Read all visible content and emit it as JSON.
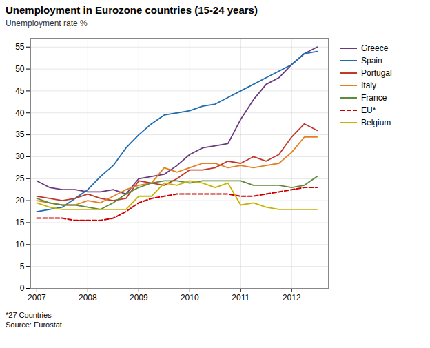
{
  "chart_data": {
    "type": "line",
    "title": "Unemployment in Eurozone countries (15-24 years)",
    "subtitle": "Unemployment rate %",
    "annotations": [
      "*27 Countries",
      "Source: Eurostat"
    ],
    "x": [
      2007.0,
      2007.25,
      2007.5,
      2007.75,
      2008.0,
      2008.25,
      2008.5,
      2008.75,
      2009.0,
      2009.25,
      2009.5,
      2009.75,
      2010.0,
      2010.25,
      2010.5,
      2010.75,
      2011.0,
      2011.25,
      2011.5,
      2011.75,
      2012.0,
      2012.25,
      2012.5
    ],
    "series": [
      {
        "name": "Greece",
        "color": "#6B3A7D",
        "line_style": "solid",
        "values": [
          24.5,
          23.0,
          22.5,
          22.5,
          22.0,
          22.0,
          22.5,
          21.5,
          25.0,
          25.5,
          26.0,
          28.0,
          30.5,
          32.0,
          32.5,
          33.0,
          38.5,
          43.0,
          46.5,
          48.0,
          51.0,
          53.5,
          55.0
        ]
      },
      {
        "name": "Spain",
        "color": "#1F6CB0",
        "line_style": "solid",
        "values": [
          17.5,
          18.0,
          18.5,
          20.5,
          22.5,
          25.5,
          28.0,
          32.0,
          35.0,
          37.5,
          39.5,
          40.0,
          40.5,
          41.5,
          42.0,
          43.5,
          45.0,
          46.5,
          48.0,
          49.5,
          51.0,
          53.5,
          54.0
        ]
      },
      {
        "name": "Portugal",
        "color": "#C0392B",
        "line_style": "solid",
        "values": [
          21.0,
          20.5,
          20.0,
          20.5,
          21.5,
          20.5,
          20.0,
          20.5,
          24.5,
          24.0,
          23.5,
          25.0,
          27.0,
          27.0,
          27.5,
          29.0,
          28.5,
          30.0,
          29.0,
          30.5,
          34.5,
          37.5,
          36.0
        ]
      },
      {
        "name": "Italy",
        "color": "#E67E22",
        "line_style": "solid",
        "values": [
          20.0,
          19.5,
          19.0,
          19.0,
          20.0,
          19.5,
          21.0,
          22.5,
          23.5,
          24.0,
          27.5,
          26.5,
          27.5,
          28.5,
          28.5,
          27.5,
          28.0,
          27.5,
          28.0,
          28.5,
          31.0,
          34.5,
          34.5
        ]
      },
      {
        "name": "France",
        "color": "#5D8A3C",
        "line_style": "solid",
        "values": [
          20.5,
          19.5,
          19.0,
          19.0,
          18.5,
          18.0,
          19.5,
          21.5,
          23.0,
          24.0,
          24.5,
          24.5,
          24.0,
          24.5,
          24.5,
          24.5,
          24.5,
          23.5,
          23.5,
          23.5,
          23.0,
          23.5,
          25.5
        ]
      },
      {
        "name": "EU*",
        "color": "#CC0000",
        "line_style": "dashed",
        "values": [
          16.0,
          16.0,
          16.0,
          15.5,
          15.5,
          15.5,
          16.0,
          17.5,
          19.5,
          20.5,
          21.0,
          21.5,
          21.5,
          21.5,
          21.5,
          21.5,
          21.0,
          21.0,
          21.5,
          22.0,
          22.5,
          23.0,
          23.0
        ]
      },
      {
        "name": "Belgium",
        "color": "#C8B400",
        "line_style": "solid",
        "values": [
          19.5,
          18.5,
          18.0,
          18.0,
          18.0,
          18.0,
          18.0,
          18.0,
          21.0,
          21.0,
          24.0,
          23.5,
          24.5,
          24.0,
          23.0,
          24.0,
          19.0,
          19.5,
          18.5,
          18.0,
          18.0,
          18.0,
          18.0
        ]
      }
    ],
    "xlim": [
      2006.88,
      2012.72
    ],
    "xticks": [
      2007,
      2008,
      2009,
      2010,
      2011,
      2012
    ],
    "ylim": [
      0,
      57
    ],
    "yticks": [
      0,
      5,
      10,
      15,
      20,
      25,
      30,
      35,
      40,
      45,
      50,
      55
    ],
    "grid": true,
    "legend": "right"
  }
}
